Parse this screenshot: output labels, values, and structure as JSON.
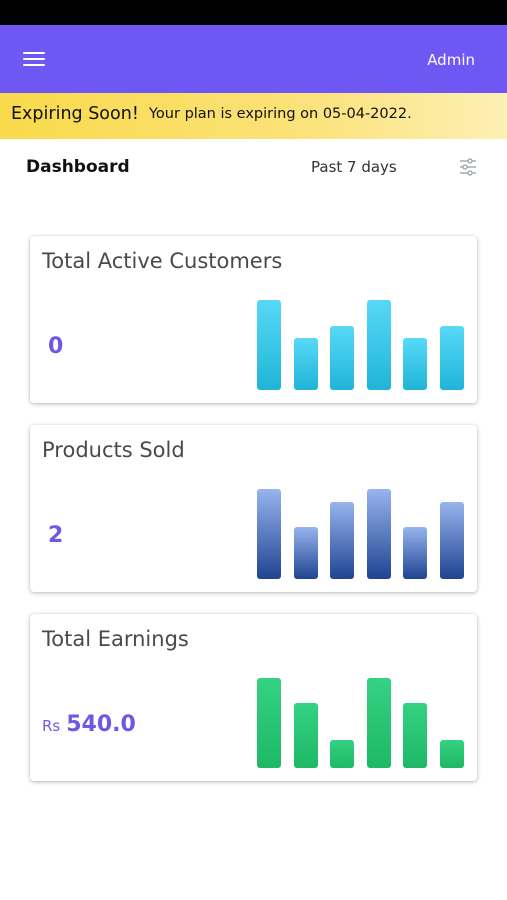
{
  "header": {
    "menu_icon": "hamburger-menu-icon",
    "user_label": "Admin",
    "accent": "#6f57f3"
  },
  "banner": {
    "title": "Expiring Soon!",
    "message": "Your plan is expiring on 05-04-2022.",
    "color": "#f9da4b"
  },
  "dashboard": {
    "title": "Dashboard",
    "period": "Past 7 days",
    "filter_icon": "sliders-icon"
  },
  "cards": [
    {
      "title": "Total Active Customers",
      "currency": "",
      "value": "0",
      "bar_levels": [
        0.73,
        0.42,
        0.52,
        0.73,
        0.42,
        0.52
      ],
      "colors": [
        "#58d8f7",
        "#1fb5d8"
      ]
    },
    {
      "title": "Products Sold",
      "currency": "",
      "value": "2",
      "bar_levels": [
        0.73,
        0.42,
        0.63,
        0.73,
        0.42,
        0.63
      ],
      "colors": [
        "#97b4ee",
        "#1f4492"
      ]
    },
    {
      "title": "Total Earnings",
      "currency": "Rs",
      "value": "540.0",
      "bar_levels": [
        0.73,
        0.53,
        0.23,
        0.73,
        0.53,
        0.23
      ],
      "colors": [
        "#34d283",
        "#1eb866"
      ]
    }
  ]
}
